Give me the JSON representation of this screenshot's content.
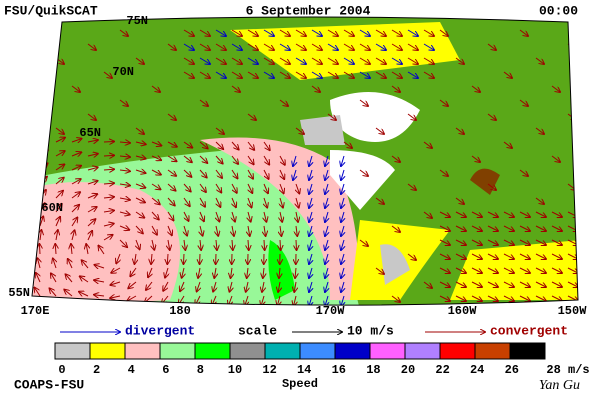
{
  "header": {
    "left": "FSU/QuikSCAT",
    "center": "6 September 2004",
    "right": "00:00"
  },
  "latitude_labels": [
    "75N",
    "70N",
    "65N",
    "60N",
    "55N"
  ],
  "longitude_labels": [
    "170E",
    "180",
    "170W",
    "160W",
    "150W"
  ],
  "legend": {
    "divergent": "divergent",
    "scale": "scale",
    "scale_value": "10 m/s",
    "convergent": "convergent"
  },
  "colorbar": {
    "title": "Speed",
    "labels": [
      "0",
      "2",
      "4",
      "6",
      "8",
      "10",
      "12",
      "14",
      "16",
      "18",
      "20",
      "22",
      "24",
      "26",
      "28 m/s"
    ],
    "colors": [
      "#ffffff",
      "#c8c8c8",
      "#ffff00",
      "#ffc0c0",
      "#98f898",
      "#00ff00",
      "#909090",
      "#00b0b0",
      "#3c8cff",
      "#0000c8",
      "#ff60ff",
      "#b080ff",
      "#ff0000",
      "#c84000",
      "#000000"
    ]
  },
  "footer": {
    "left": "COAPS-FSU",
    "right": "Yan Gu"
  }
}
